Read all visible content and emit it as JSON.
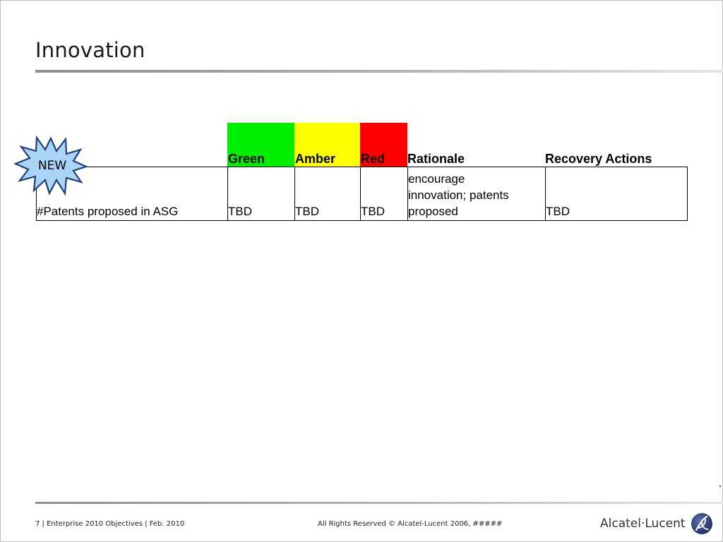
{
  "slide": {
    "title": "Innovation"
  },
  "badge": {
    "label": "NEW",
    "fill_color": "#aad4f5",
    "stroke_color": "#1f3f7a"
  },
  "status_colors": {
    "green": "#00ee00",
    "amber": "#ffff00",
    "red": "#ff0000"
  },
  "table": {
    "headers": [
      "",
      "Green",
      "Amber",
      "Red",
      "Rationale",
      "Recovery Actions"
    ],
    "rows": [
      {
        "metric": "#Patents proposed in ASG",
        "green": "TBD",
        "amber": "TBD",
        "red": "TBD",
        "rationale_lines": [
          "encourage",
          "innovation; patents",
          "proposed"
        ],
        "recovery": "TBD"
      }
    ]
  },
  "footer": {
    "left": "7 | Enterprise 2010 Objectives | Feb. 2010",
    "center": "All Rights Reserved © Alcatel-Lucent 2006, #####",
    "logo_text": "Alcatel·Lucent",
    "logo_icon": "alcatel-lucent-swirl-icon"
  }
}
